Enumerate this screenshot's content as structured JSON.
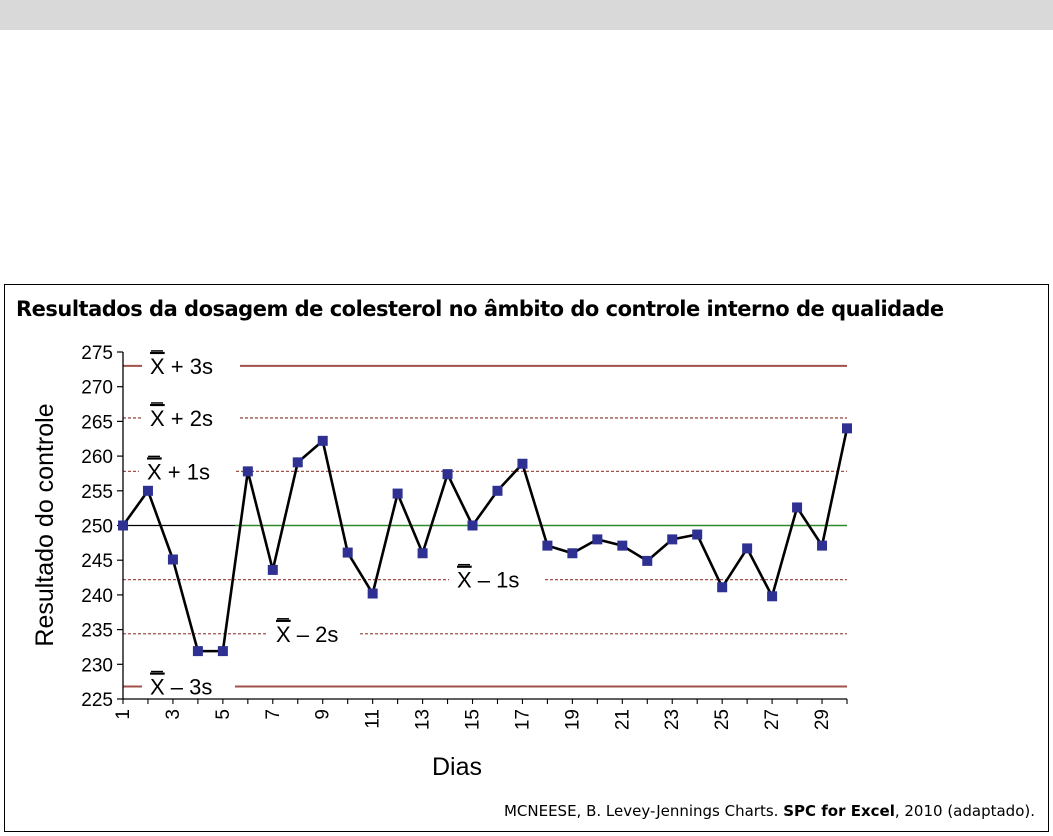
{
  "chart_data": {
    "type": "line",
    "title": "Resultados da dosagem de colesterol no âmbito do controle interno de qualidade",
    "xlabel": "Dias",
    "ylabel": "Resultado do controle",
    "ylim": [
      225,
      275
    ],
    "xlim": [
      1,
      30
    ],
    "y_ticks": [
      225,
      230,
      235,
      240,
      245,
      250,
      255,
      260,
      265,
      270,
      275
    ],
    "x_ticks": [
      1,
      3,
      5,
      7,
      9,
      11,
      13,
      15,
      17,
      19,
      21,
      23,
      25,
      27,
      29
    ],
    "series": [
      {
        "x": [
          1,
          2,
          3,
          4,
          5,
          6,
          7,
          8,
          9,
          10,
          11,
          12,
          13,
          14,
          15,
          16,
          17,
          18,
          19,
          20,
          21,
          22,
          23,
          24,
          25,
          26,
          27,
          28,
          29,
          30
        ],
        "values": [
          250,
          255,
          245.1,
          231.9,
          231.9,
          257.8,
          243.6,
          259.1,
          262.2,
          246.1,
          240.2,
          254.6,
          246,
          257.4,
          250,
          255,
          258.9,
          247.1,
          246,
          248,
          247.1,
          244.9,
          248,
          248.7,
          241.1,
          246.7,
          239.8,
          252.6,
          247.1,
          264
        ]
      }
    ],
    "reference_lines": [
      {
        "value": 273,
        "label_main": "X",
        "label_suffix": "+ 3s",
        "style": "solid",
        "color": "#a0524a"
      },
      {
        "value": 265.5,
        "label_main": "X",
        "label_suffix": "+ 2s",
        "style": "dashed",
        "color": "#a0524a"
      },
      {
        "value": 257.8,
        "label_main": "X",
        "label_suffix": "+ 1s",
        "style": "dashed",
        "color": "#a0524a"
      },
      {
        "value": 250,
        "label_main": "",
        "label_suffix": "",
        "style": "solid",
        "color": "#2e8b2e"
      },
      {
        "value": 242.2,
        "label_main": "X",
        "label_suffix": "– 1s",
        "style": "dashed",
        "color": "#a0524a"
      },
      {
        "value": 234.4,
        "label_main": "X",
        "label_suffix": "– 2s",
        "style": "dashed",
        "color": "#a0524a"
      },
      {
        "value": 226.8,
        "label_main": "X",
        "label_suffix": "– 3s",
        "style": "solid",
        "color": "#a0524a"
      }
    ],
    "grid": false,
    "colors": {
      "line": "#000000",
      "marker": "#2e3192",
      "mean_left": "#000000"
    }
  },
  "source": {
    "author": "MCNEESE, B. Levey-Jennings Charts.",
    "publication": "SPC for Excel",
    "rest": ", 2010 (adaptado)."
  }
}
